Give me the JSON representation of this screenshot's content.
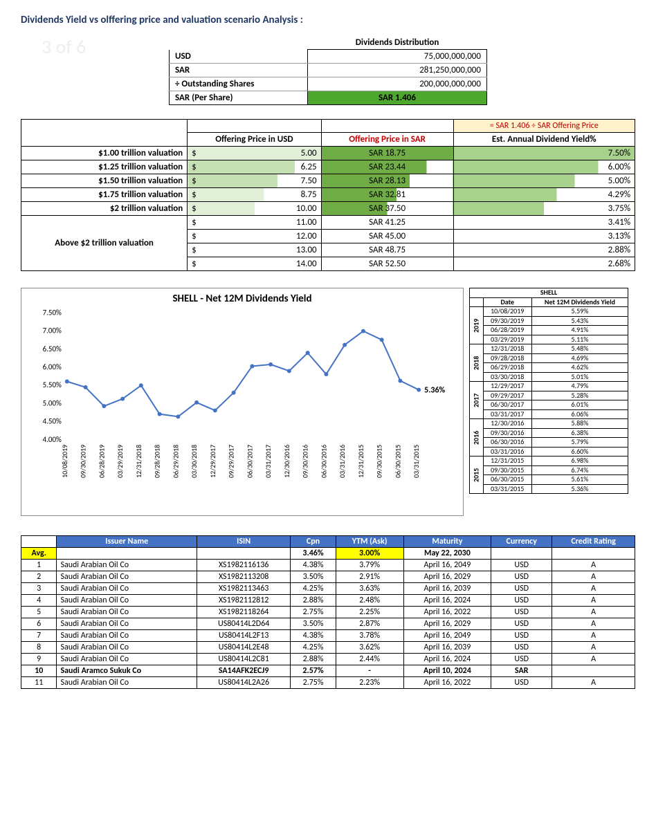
{
  "title": "Dividends Yield vs olffering price and valuation scenario Analysis :",
  "watermark": "3 of 6",
  "div_dist": {
    "header": "Dividends Distribution",
    "rows": [
      {
        "label": "USD",
        "value": "75,000,000,000"
      },
      {
        "label": "SAR",
        "value": "281,250,000,000"
      },
      {
        "label": "÷ Outstanding Shares",
        "value": "200,000,000,000"
      }
    ],
    "per_share_label": "SAR (Per Share)",
    "per_share_value": "SAR 1.406",
    "per_share_bg": "#4ea72e"
  },
  "scenario": {
    "top_note": "= SAR 1.406 ÷ SAR Offering Price",
    "col_usd": "Offering Price in USD",
    "col_sar": "Offering Price in SAR",
    "col_yield": "Est. Annual Dividend Yield%",
    "rows": [
      {
        "label": "$1.00 trillion valuation",
        "usd": "5.00",
        "sar": "SAR 18.75",
        "yield": "7.50%",
        "fill": 1.0
      },
      {
        "label": "$1.25 trillion valuation",
        "usd": "6.25",
        "sar": "SAR 23.44",
        "yield": "6.00%",
        "fill": 0.8
      },
      {
        "label": "$1.50 trillion valuation",
        "usd": "7.50",
        "sar": "SAR 28.13",
        "yield": "5.00%",
        "fill": 0.67
      },
      {
        "label": "$1.75 trillion valuation",
        "usd": "8.75",
        "sar": "SAR 32.81",
        "yield": "4.29%",
        "fill": 0.57
      },
      {
        "label": "$2 trillion valuation",
        "usd": "10.00",
        "sar": "SAR 37.50",
        "yield": "3.75%",
        "fill": 0.5
      }
    ],
    "above_label": "Above $2 trillion valuation",
    "above_rows": [
      {
        "usd": "11.00",
        "sar": "SAR 41.25",
        "yield": "3.41%"
      },
      {
        "usd": "12.00",
        "sar": "SAR 45.00",
        "yield": "3.13%"
      },
      {
        "usd": "13.00",
        "sar": "SAR 48.75",
        "yield": "2.88%"
      },
      {
        "usd": "14.00",
        "sar": "SAR 52.50",
        "yield": "2.68%"
      }
    ]
  },
  "chart": {
    "type": "line",
    "title": "SHELL - Net 12M Dividends Yield",
    "line_color": "#4472c4",
    "line_width": 2,
    "marker_color": "#4472c4",
    "marker_radius": 3,
    "background_color": "#ffffff",
    "ylim": [
      4.0,
      7.5
    ],
    "ytick_step": 0.5,
    "ylabel_format": "percent",
    "yticks": [
      "7.50%",
      "7.00%",
      "6.50%",
      "6.00%",
      "5.50%",
      "5.00%",
      "4.50%",
      "4.00%"
    ],
    "categories": [
      "10/08/2019",
      "09/30/2019",
      "06/28/2019",
      "03/29/2019",
      "12/31/2018",
      "09/28/2018",
      "06/29/2018",
      "03/30/2018",
      "12/29/2017",
      "09/29/2017",
      "06/30/2017",
      "03/31/2017",
      "12/30/2016",
      "09/30/2016",
      "06/30/2016",
      "03/31/2016",
      "12/31/2015",
      "09/30/2015",
      "06/30/2015",
      "03/31/2015"
    ],
    "values": [
      5.59,
      5.43,
      4.91,
      5.11,
      5.48,
      4.69,
      4.62,
      5.01,
      4.79,
      5.28,
      6.01,
      6.06,
      5.88,
      6.38,
      5.79,
      6.6,
      6.98,
      6.74,
      5.61,
      5.36
    ],
    "end_label": "5.36%",
    "label_fontsize": 11
  },
  "shell_table": {
    "title": "SHELL",
    "col_date": "Date",
    "col_yield": "Net 12M Dividends Yield",
    "groups": [
      {
        "year": "2019",
        "rows": [
          {
            "date": "10/08/2019",
            "val": "5.59%"
          },
          {
            "date": "09/30/2019",
            "val": "5.43%"
          },
          {
            "date": "06/28/2019",
            "val": "4.91%"
          },
          {
            "date": "03/29/2019",
            "val": "5.11%"
          }
        ]
      },
      {
        "year": "2018",
        "rows": [
          {
            "date": "12/31/2018",
            "val": "5.48%"
          },
          {
            "date": "09/28/2018",
            "val": "4.69%"
          },
          {
            "date": "06/29/2018",
            "val": "4.62%"
          },
          {
            "date": "03/30/2018",
            "val": "5.01%"
          }
        ]
      },
      {
        "year": "2017",
        "rows": [
          {
            "date": "12/29/2017",
            "val": "4.79%"
          },
          {
            "date": "09/29/2017",
            "val": "5.28%"
          },
          {
            "date": "06/30/2017",
            "val": "6.01%"
          },
          {
            "date": "03/31/2017",
            "val": "6.06%"
          }
        ]
      },
      {
        "year": "2016",
        "rows": [
          {
            "date": "12/30/2016",
            "val": "5.88%"
          },
          {
            "date": "09/30/2016",
            "val": "6.38%"
          },
          {
            "date": "06/30/2016",
            "val": "5.79%"
          },
          {
            "date": "03/31/2016",
            "val": "6.60%"
          }
        ]
      },
      {
        "year": "2015",
        "rows": [
          {
            "date": "12/31/2015",
            "val": "6.98%"
          },
          {
            "date": "09/30/2015",
            "val": "6.74%"
          },
          {
            "date": "06/30/2015",
            "val": "5.61%"
          },
          {
            "date": "03/31/2015",
            "val": "5.36%"
          }
        ]
      }
    ]
  },
  "bonds": {
    "cols": [
      "Issuer Name",
      "ISIN",
      "Cpn",
      "YTM (Ask)",
      "Maturity",
      "Currency",
      "Credit Rating"
    ],
    "avg_label": "Avg.",
    "avg": {
      "cpn": "3.46%",
      "ytm": "3.00%",
      "maturity": "May 22, 2030"
    },
    "rows": [
      {
        "n": "1",
        "issuer": "Saudi Arabian Oil Co",
        "isin": "XS1982116136",
        "cpn": "4.38%",
        "ytm": "3.79%",
        "mat": "April 16, 2049",
        "ccy": "USD",
        "rating": "A"
      },
      {
        "n": "2",
        "issuer": "Saudi Arabian Oil Co",
        "isin": "XS1982113208",
        "cpn": "3.50%",
        "ytm": "2.91%",
        "mat": "April 16, 2029",
        "ccy": "USD",
        "rating": "A"
      },
      {
        "n": "3",
        "issuer": "Saudi Arabian Oil Co",
        "isin": "XS1982113463",
        "cpn": "4.25%",
        "ytm": "3.63%",
        "mat": "April 16, 2039",
        "ccy": "USD",
        "rating": "A"
      },
      {
        "n": "4",
        "issuer": "Saudi Arabian Oil Co",
        "isin": "XS1982112812",
        "cpn": "2.88%",
        "ytm": "2.48%",
        "mat": "April 16, 2024",
        "ccy": "USD",
        "rating": "A"
      },
      {
        "n": "5",
        "issuer": "Saudi Arabian Oil Co",
        "isin": "XS1982118264",
        "cpn": "2.75%",
        "ytm": "2.25%",
        "mat": "April 16, 2022",
        "ccy": "USD",
        "rating": "A"
      },
      {
        "n": "6",
        "issuer": "Saudi Arabian Oil Co",
        "isin": "US80414L2D64",
        "cpn": "3.50%",
        "ytm": "2.87%",
        "mat": "April 16, 2029",
        "ccy": "USD",
        "rating": "A"
      },
      {
        "n": "7",
        "issuer": "Saudi Arabian Oil Co",
        "isin": "US80414L2F13",
        "cpn": "4.38%",
        "ytm": "3.78%",
        "mat": "April 16, 2049",
        "ccy": "USD",
        "rating": "A"
      },
      {
        "n": "8",
        "issuer": "Saudi Arabian Oil Co",
        "isin": "US80414L2E48",
        "cpn": "4.25%",
        "ytm": "3.62%",
        "mat": "April 16, 2039",
        "ccy": "USD",
        "rating": "A"
      },
      {
        "n": "9",
        "issuer": "Saudi Arabian Oil Co",
        "isin": "US80414L2C81",
        "cpn": "2.88%",
        "ytm": "2.44%",
        "mat": "April 16, 2024",
        "ccy": "USD",
        "rating": "A"
      },
      {
        "n": "10",
        "issuer": "Saudi Aramco Sukuk Co",
        "isin": "SA14AFK2ECJ9",
        "cpn": "2.57%",
        "ytm": "-",
        "mat": "April 10, 2024",
        "ccy": "SAR",
        "rating": "",
        "bold": true
      },
      {
        "n": "11",
        "issuer": "Saudi Arabian Oil Co",
        "isin": "US80414L2A26",
        "cpn": "2.75%",
        "ytm": "2.23%",
        "mat": "April 16, 2022",
        "ccy": "USD",
        "rating": "A"
      }
    ]
  }
}
